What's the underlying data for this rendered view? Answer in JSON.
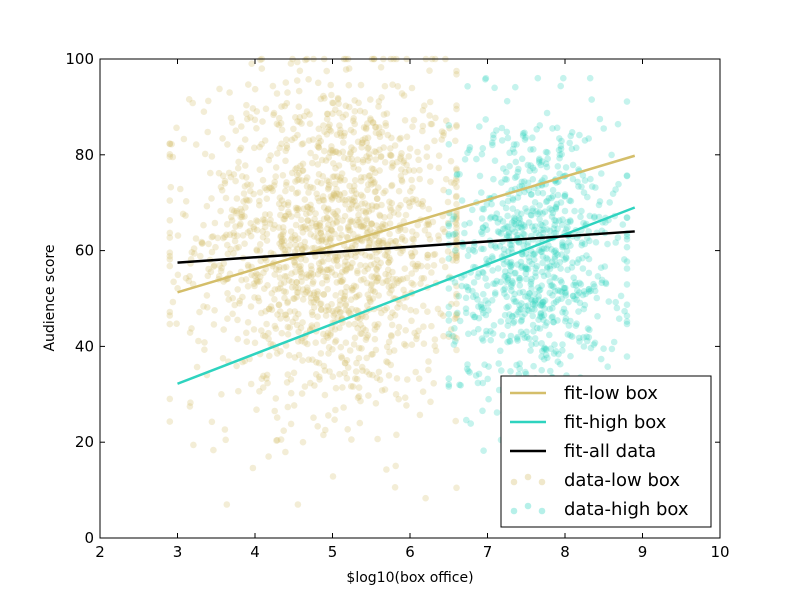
{
  "chart_data": {
    "type": "scatter",
    "title": "",
    "xlabel": "$log10(box office)",
    "ylabel": "Audience score",
    "xlim": [
      2,
      10
    ],
    "ylim": [
      0,
      100
    ],
    "xticks": [
      "2",
      "3",
      "4",
      "5",
      "6",
      "7",
      "8",
      "9",
      "10"
    ],
    "yticks": [
      "0",
      "20",
      "40",
      "60",
      "80",
      "100"
    ],
    "grid": false,
    "legend_position": "lower-right",
    "colors": {
      "low": "#d4be6a",
      "high": "#2ed3bf",
      "all": "#000000"
    },
    "fit_lines": [
      {
        "name": "fit-low box",
        "color": "#d4be6a",
        "x": [
          3.0,
          8.9
        ],
        "y": [
          51.3,
          79.8
        ]
      },
      {
        "name": "fit-high box",
        "color": "#2ed3bf",
        "x": [
          3.0,
          8.9
        ],
        "y": [
          32.2,
          69.0
        ]
      },
      {
        "name": "fit-all data",
        "color": "#000000",
        "x": [
          3.0,
          8.9
        ],
        "y": [
          57.5,
          64.0
        ]
      }
    ],
    "scatter_series": [
      {
        "name": "data-low box",
        "color": "#d4be6a",
        "x_range": [
          2.9,
          6.6
        ],
        "y_range": [
          7,
          100
        ],
        "approx_count": 1600,
        "x_mean": 5.0,
        "y_mean": 62
      },
      {
        "name": "data-high box",
        "color": "#2ed3bf",
        "x_range": [
          6.5,
          8.8
        ],
        "y_range": [
          17,
          96
        ],
        "approx_count": 900,
        "x_mean": 7.6,
        "y_mean": 58
      }
    ],
    "legend": [
      "fit-low box",
      "fit-high box",
      "fit-all data",
      "data-low box",
      "data-high box"
    ]
  }
}
